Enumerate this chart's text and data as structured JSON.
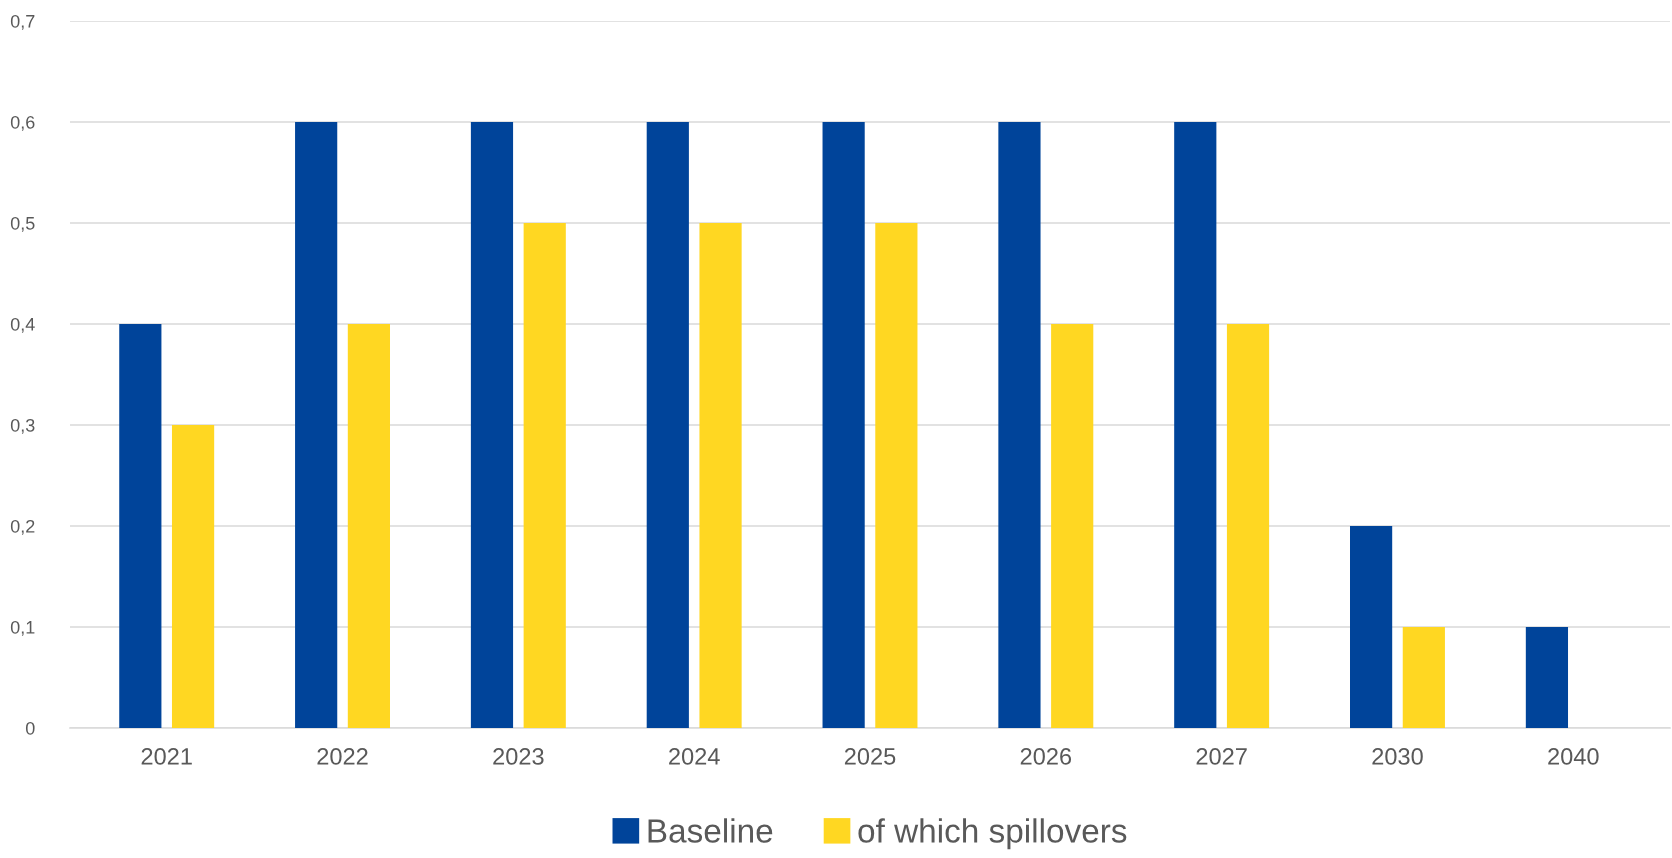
{
  "chart_data": {
    "type": "bar",
    "categories": [
      "2021",
      "2022",
      "2023",
      "2024",
      "2025",
      "2026",
      "2027",
      "2030",
      "2040"
    ],
    "series": [
      {
        "name": "Baseline",
        "color": "#00449a",
        "values": [
          0.4,
          0.6,
          0.6,
          0.6,
          0.6,
          0.6,
          0.6,
          0.2,
          0.1
        ]
      },
      {
        "name": "of which spillovers",
        "color": "#ffd722",
        "values": [
          0.3,
          0.4,
          0.5,
          0.5,
          0.5,
          0.4,
          0.4,
          0.1,
          null
        ]
      }
    ],
    "ylim": [
      0,
      0.7
    ],
    "yticks": [
      {
        "value": 0,
        "label": "0"
      },
      {
        "value": 0.1,
        "label": "0,1"
      },
      {
        "value": 0.2,
        "label": "0,2"
      },
      {
        "value": 0.3,
        "label": "0,3"
      },
      {
        "value": 0.4,
        "label": "0,4"
      },
      {
        "value": 0.5,
        "label": "0,5"
      },
      {
        "value": 0.6,
        "label": "0,6"
      },
      {
        "value": 0.7,
        "label": "0,7"
      }
    ],
    "grid": "y",
    "legend": "bottom"
  }
}
